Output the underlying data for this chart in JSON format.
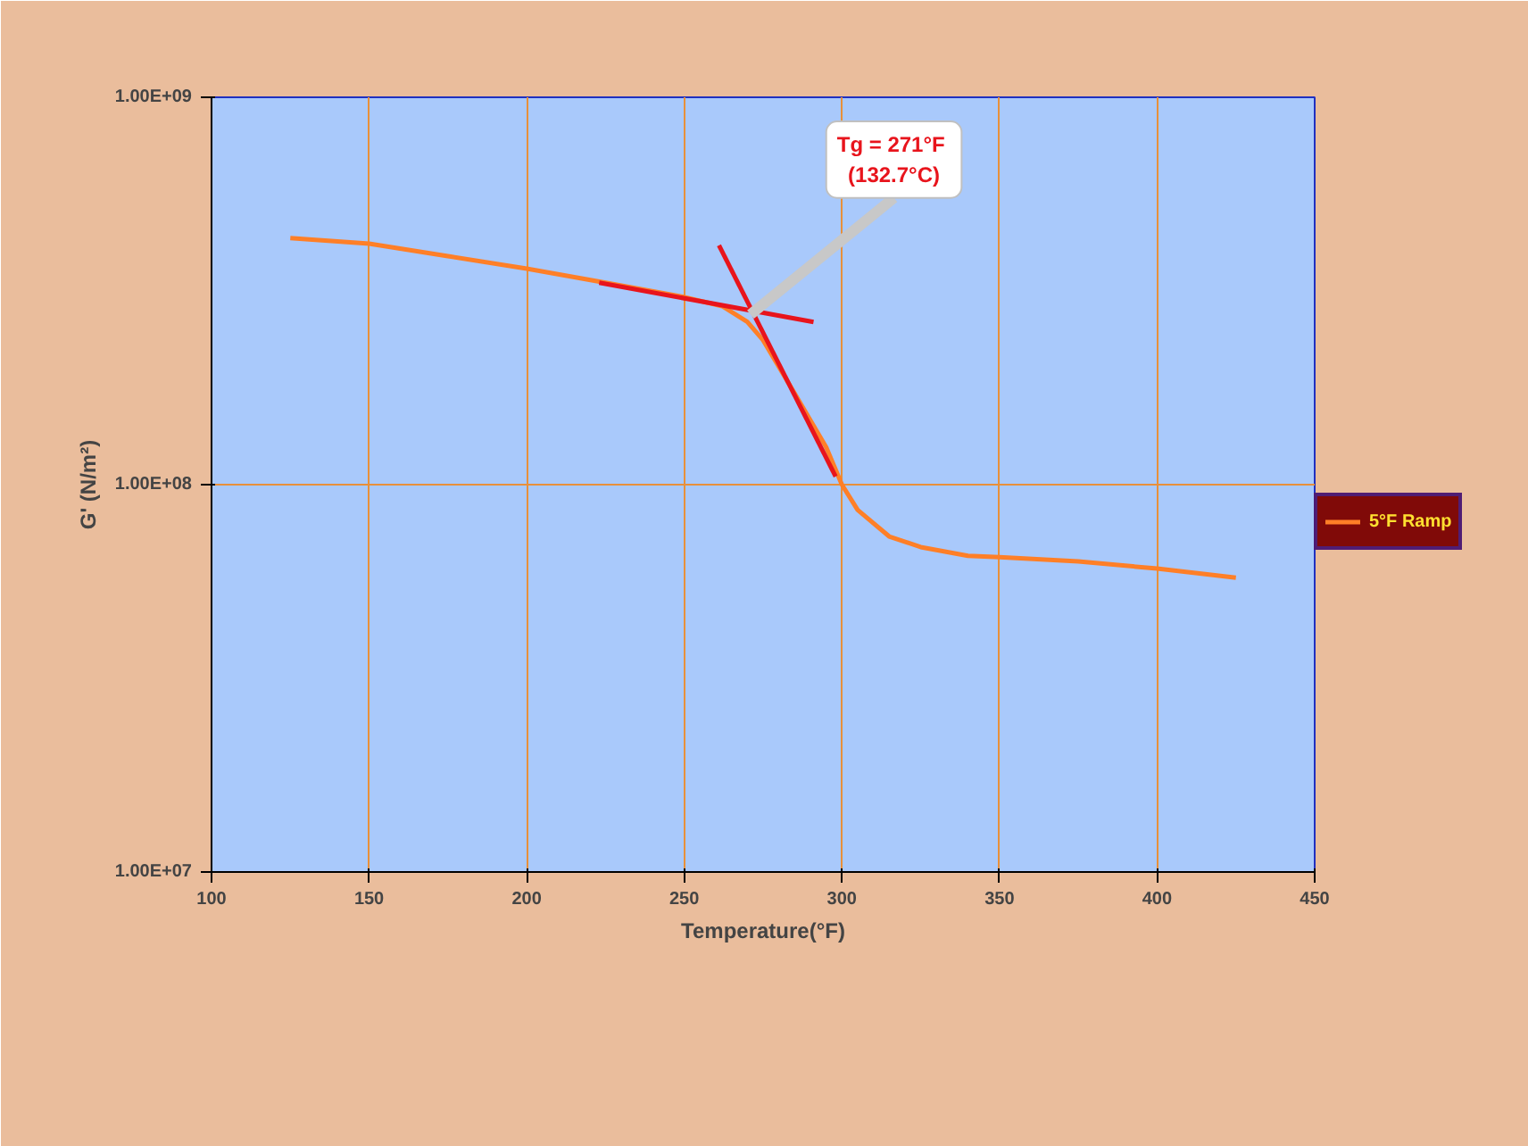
{
  "chart_data": {
    "type": "line",
    "xlabel": "Temperature(°F)",
    "ylabel": "G' (N/m²)",
    "xlim": [
      100,
      450
    ],
    "xticks": [
      100,
      150,
      200,
      250,
      300,
      350,
      400,
      450
    ],
    "ylim": [
      10000000,
      1000000000
    ],
    "log": true,
    "yticks": [
      {
        "value": 10000000,
        "label": "1.00E+07"
      },
      {
        "value": 100000000,
        "label": "1.00E+08"
      },
      {
        "value": 1000000000,
        "label": "1.00E+09"
      }
    ],
    "grid": true,
    "legend": "right",
    "series": [
      {
        "name": "5°F Ramp",
        "color": "#ff7f27",
        "x": [
          125,
          150,
          175,
          200,
          225,
          250,
          262,
          270,
          275,
          285,
          295,
          300,
          305,
          315,
          325,
          340,
          350,
          375,
          400,
          425
        ],
        "values": [
          433000000,
          419000000,
          389000000,
          361000000,
          332000000,
          305000000,
          289000000,
          263000000,
          236000000,
          172000000,
          125000000,
          100000000,
          86000000,
          73500000,
          69000000,
          65500000,
          65000000,
          63400000,
          60700000,
          57500000
        ]
      },
      {
        "color": "#e8141c",
        "x": [
          223,
          291
        ],
        "values": [
          332000000,
          263000000
        ]
      },
      {
        "color": "#e8141c",
        "x": [
          261,
          298
        ],
        "values": [
          415000000,
          105000000
        ]
      }
    ],
    "annotations": [
      {
        "text": "Tg  = 271°F\n(132.7°C)",
        "x": 271,
        "y": 275000000
      }
    ]
  }
}
